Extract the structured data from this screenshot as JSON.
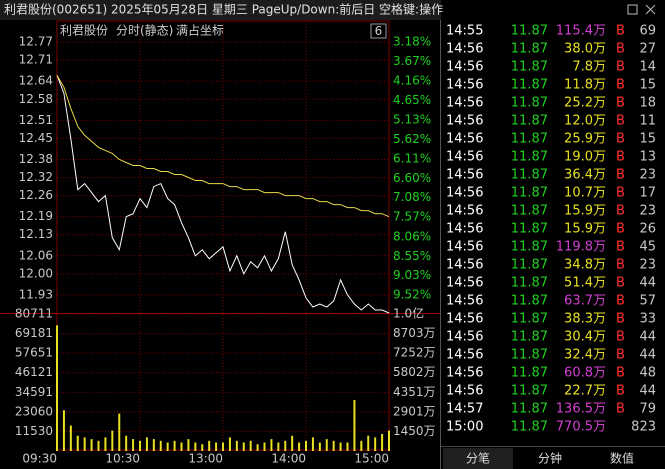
{
  "header": {
    "title": "利君股份(002651) 2025年05月28日 星期三 PageUp/Down:前后日 空格键:操作"
  },
  "chart_data": [
    {
      "type": "line",
      "labels": [
        "利君股份",
        "分时(静态)",
        "满占坐标"
      ],
      "period_box": "6",
      "x": [
        "09:30",
        "09:35",
        "09:40",
        "09:45",
        "09:50",
        "09:55",
        "10:00",
        "10:05",
        "10:10",
        "10:15",
        "10:20",
        "10:25",
        "10:30",
        "10:35",
        "10:40",
        "10:45",
        "10:50",
        "10:55",
        "11:00",
        "11:05",
        "11:10",
        "11:15",
        "11:20",
        "11:25",
        "11:30",
        "13:05",
        "13:10",
        "13:15",
        "13:20",
        "13:25",
        "13:30",
        "13:35",
        "13:40",
        "13:45",
        "13:50",
        "13:55",
        "14:00",
        "14:05",
        "14:10",
        "14:15",
        "14:20",
        "14:25",
        "14:30",
        "14:35",
        "14:40",
        "14:45",
        "14:50",
        "14:55",
        "15:00"
      ],
      "series": [
        {
          "name": "price",
          "color": "#ffffff",
          "values": [
            12.66,
            12.6,
            12.45,
            12.28,
            12.3,
            12.27,
            12.24,
            12.26,
            12.12,
            12.08,
            12.19,
            12.2,
            12.25,
            12.22,
            12.29,
            12.3,
            12.25,
            12.23,
            12.17,
            12.12,
            12.06,
            12.08,
            12.05,
            12.07,
            12.09,
            12.01,
            12.06,
            12.0,
            12.04,
            12.02,
            12.06,
            12.01,
            12.05,
            12.14,
            12.03,
            11.98,
            11.92,
            11.89,
            11.9,
            11.89,
            11.91,
            11.98,
            11.93,
            11.9,
            11.88,
            11.9,
            11.88,
            11.88,
            11.87
          ]
        },
        {
          "name": "average",
          "color": "#e8d84a",
          "values": [
            12.66,
            12.62,
            12.55,
            12.49,
            12.46,
            12.44,
            12.42,
            12.41,
            12.4,
            12.38,
            12.37,
            12.36,
            12.36,
            12.35,
            12.35,
            12.34,
            12.34,
            12.33,
            12.33,
            12.32,
            12.31,
            12.31,
            12.3,
            12.3,
            12.3,
            12.29,
            12.29,
            12.28,
            12.28,
            12.28,
            12.27,
            12.27,
            12.27,
            12.26,
            12.26,
            12.26,
            12.25,
            12.25,
            12.24,
            12.24,
            12.23,
            12.23,
            12.22,
            12.22,
            12.21,
            12.21,
            12.2,
            12.2,
            12.19
          ]
        }
      ],
      "xlim": [
        "09:30",
        "15:00"
      ],
      "xticks": [
        "09:30",
        "10:30",
        "13:00",
        "14:00",
        "15:00"
      ],
      "ylim": [
        11.87,
        12.83
      ],
      "yticks": [
        12.77,
        12.71,
        12.64,
        12.58,
        12.51,
        12.45,
        12.38,
        12.32,
        12.26,
        12.19,
        12.13,
        12.06,
        {
          "value": 12.0,
          "label": "12.00"
        },
        11.93
      ],
      "y2lim": [
        9.97,
        2.73
      ],
      "y2ticks": [
        {
          "value": 3.18,
          "label": "3.18%"
        },
        {
          "value": 3.67,
          "label": "3.67%"
        },
        {
          "value": 4.16,
          "label": "4.16%"
        },
        {
          "value": 4.65,
          "label": "4.65%"
        },
        {
          "value": 5.13,
          "label": "5.13%"
        },
        {
          "value": 5.62,
          "label": "5.62%"
        },
        {
          "value": 6.11,
          "label": "6.11%"
        },
        {
          "value": 6.6,
          "label": "6.60%"
        },
        {
          "value": 7.08,
          "label": "7.08%"
        },
        {
          "value": 7.57,
          "label": "7.57%"
        },
        {
          "value": 8.06,
          "label": "8.06%"
        },
        {
          "value": 8.55,
          "label": "8.55%"
        },
        {
          "value": 9.03,
          "label": "9.03%"
        },
        {
          "value": 9.52,
          "label": "9.52%"
        }
      ],
      "grid": true
    },
    {
      "type": "bar",
      "x": [
        "09:30",
        "09:35",
        "09:40",
        "09:45",
        "09:50",
        "09:55",
        "10:00",
        "10:05",
        "10:10",
        "10:15",
        "10:20",
        "10:25",
        "10:30",
        "10:35",
        "10:40",
        "10:45",
        "10:50",
        "10:55",
        "11:00",
        "11:05",
        "11:10",
        "11:15",
        "11:20",
        "11:25",
        "11:30",
        "13:05",
        "13:10",
        "13:15",
        "13:20",
        "13:25",
        "13:30",
        "13:35",
        "13:40",
        "13:45",
        "13:50",
        "13:55",
        "14:00",
        "14:05",
        "14:10",
        "14:15",
        "14:20",
        "14:25",
        "14:30",
        "14:35",
        "14:40",
        "14:45",
        "14:50",
        "14:55",
        "15:00"
      ],
      "color": "#e8e020",
      "values": [
        74000,
        24000,
        15000,
        9000,
        8000,
        7000,
        6000,
        8000,
        12000,
        22000,
        9000,
        7000,
        6000,
        8000,
        7000,
        6000,
        5000,
        6000,
        5000,
        7000,
        5000,
        4000,
        6000,
        5000,
        5000,
        8000,
        6000,
        5000,
        6000,
        4000,
        5000,
        7000,
        5000,
        6000,
        9000,
        5000,
        6000,
        8000,
        5000,
        7000,
        6000,
        5000,
        5000,
        30000,
        6000,
        9000,
        8000,
        10000,
        12000
      ],
      "xlim": [
        "09:30",
        "15:00"
      ],
      "ylim": [
        0,
        80711
      ],
      "yticks": [
        11530,
        23060,
        34591,
        46121,
        57651,
        69181,
        80711
      ],
      "y2lim": [
        0,
        10153
      ],
      "y2ticks": [
        {
          "value": 1450,
          "label": "1450万"
        },
        {
          "value": 2901,
          "label": "2901万"
        },
        {
          "value": 4351,
          "label": "4351万"
        },
        {
          "value": 5802,
          "label": "5802万"
        },
        {
          "value": 7252,
          "label": "7252万"
        },
        {
          "value": 8703,
          "label": "8703万"
        },
        {
          "value": 10153,
          "label": "1.0亿"
        }
      ],
      "grid": true
    }
  ],
  "trades": {
    "rows": [
      {
        "time": "14:55",
        "price": "11.87",
        "amount": "115.4万",
        "side": "B",
        "count": "69",
        "amount_color": "#d040d0"
      },
      {
        "time": "14:56",
        "price": "11.87",
        "amount": "38.0万",
        "side": "B",
        "count": "27",
        "amount_color": "#e8e020"
      },
      {
        "time": "14:56",
        "price": "11.87",
        "amount": "7.8万",
        "side": "B",
        "count": "14",
        "amount_color": "#e8e020"
      },
      {
        "time": "14:56",
        "price": "11.87",
        "amount": "11.8万",
        "side": "B",
        "count": "15",
        "amount_color": "#e8e020"
      },
      {
        "time": "14:56",
        "price": "11.87",
        "amount": "25.2万",
        "side": "B",
        "count": "18",
        "amount_color": "#e8e020"
      },
      {
        "time": "14:56",
        "price": "11.87",
        "amount": "12.0万",
        "side": "B",
        "count": "11",
        "amount_color": "#e8e020"
      },
      {
        "time": "14:56",
        "price": "11.87",
        "amount": "25.9万",
        "side": "B",
        "count": "15",
        "amount_color": "#e8e020"
      },
      {
        "time": "14:56",
        "price": "11.87",
        "amount": "19.0万",
        "side": "B",
        "count": "13",
        "amount_color": "#e8e020"
      },
      {
        "time": "14:56",
        "price": "11.87",
        "amount": "36.4万",
        "side": "B",
        "count": "23",
        "amount_color": "#e8e020"
      },
      {
        "time": "14:56",
        "price": "11.87",
        "amount": "10.7万",
        "side": "B",
        "count": "17",
        "amount_color": "#e8e020"
      },
      {
        "time": "14:56",
        "price": "11.87",
        "amount": "15.9万",
        "side": "B",
        "count": "23",
        "amount_color": "#e8e020"
      },
      {
        "time": "14:56",
        "price": "11.87",
        "amount": "15.9万",
        "side": "B",
        "count": "26",
        "amount_color": "#e8e020"
      },
      {
        "time": "14:56",
        "price": "11.87",
        "amount": "119.8万",
        "side": "B",
        "count": "45",
        "amount_color": "#d040d0"
      },
      {
        "time": "14:56",
        "price": "11.87",
        "amount": "34.8万",
        "side": "B",
        "count": "23",
        "amount_color": "#e8e020"
      },
      {
        "time": "14:56",
        "price": "11.87",
        "amount": "51.4万",
        "side": "B",
        "count": "44",
        "amount_color": "#e8e020"
      },
      {
        "time": "14:56",
        "price": "11.87",
        "amount": "63.7万",
        "side": "B",
        "count": "57",
        "amount_color": "#d040d0"
      },
      {
        "time": "14:56",
        "price": "11.87",
        "amount": "38.3万",
        "side": "B",
        "count": "33",
        "amount_color": "#e8e020"
      },
      {
        "time": "14:56",
        "price": "11.87",
        "amount": "30.4万",
        "side": "B",
        "count": "44",
        "amount_color": "#e8e020"
      },
      {
        "time": "14:56",
        "price": "11.87",
        "amount": "32.4万",
        "side": "B",
        "count": "44",
        "amount_color": "#e8e020"
      },
      {
        "time": "14:56",
        "price": "11.87",
        "amount": "60.8万",
        "side": "B",
        "count": "48",
        "amount_color": "#d040d0"
      },
      {
        "time": "14:56",
        "price": "11.87",
        "amount": "22.7万",
        "side": "B",
        "count": "44",
        "amount_color": "#e8e020"
      },
      {
        "time": "14:57",
        "price": "11.87",
        "amount": "136.5万",
        "side": "B",
        "count": "79",
        "amount_color": "#d040d0"
      },
      {
        "time": "15:00",
        "price": "11.87",
        "amount": "770.5万",
        "count": "823",
        "amount_color": "#d040d0"
      }
    ]
  },
  "tabs": [
    "分笔",
    "分钟",
    "数值"
  ]
}
